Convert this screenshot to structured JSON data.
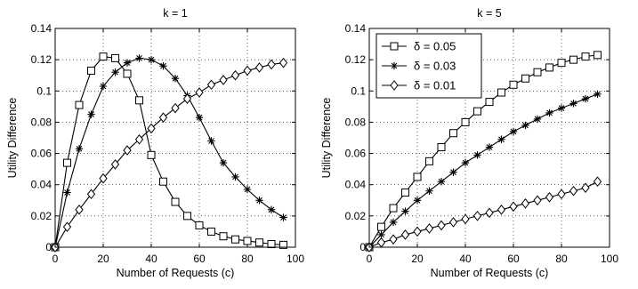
{
  "chart_data": [
    {
      "type": "line",
      "title": "k = 1",
      "xlabel": "Number of Requests (c)",
      "ylabel": "Utility Difference",
      "xlim": [
        0,
        100
      ],
      "ylim": [
        0,
        0.14
      ],
      "xticks": [
        0,
        20,
        40,
        60,
        80,
        100
      ],
      "yticks": [
        0,
        0.02,
        0.04,
        0.06,
        0.08,
        0.1,
        0.12,
        0.14
      ],
      "xtick_labels": [
        "0",
        "20",
        "40",
        "60",
        "80",
        "100"
      ],
      "ytick_labels": [
        "0",
        "0.02",
        "0.04",
        "0.06",
        "0.08",
        "0.1",
        "0.12",
        "0.14"
      ],
      "grid": true,
      "legend": null,
      "series": [
        {
          "name": "δ = 0.05",
          "marker": "square",
          "x": [
            0,
            5,
            10,
            15,
            20,
            25,
            30,
            35,
            40,
            45,
            50,
            55,
            60,
            65,
            70,
            75,
            80,
            85,
            90,
            95
          ],
          "y": [
            0.0,
            0.054,
            0.091,
            0.113,
            0.122,
            0.121,
            0.111,
            0.094,
            0.059,
            0.042,
            0.029,
            0.02,
            0.014,
            0.01,
            0.007,
            0.005,
            0.004,
            0.003,
            0.002,
            0.0015
          ]
        },
        {
          "name": "δ = 0.03",
          "marker": "star",
          "x": [
            0,
            5,
            10,
            15,
            20,
            25,
            30,
            35,
            40,
            45,
            50,
            55,
            60,
            65,
            70,
            75,
            80,
            85,
            90,
            95
          ],
          "y": [
            0.0,
            0.035,
            0.063,
            0.085,
            0.103,
            0.112,
            0.118,
            0.121,
            0.12,
            0.116,
            0.108,
            0.097,
            0.083,
            0.068,
            0.054,
            0.045,
            0.037,
            0.03,
            0.024,
            0.019
          ]
        },
        {
          "name": "δ = 0.01",
          "marker": "diamond",
          "x": [
            0,
            5,
            10,
            15,
            20,
            25,
            30,
            35,
            40,
            45,
            50,
            55,
            60,
            65,
            70,
            75,
            80,
            85,
            90,
            95
          ],
          "y": [
            0.0,
            0.013,
            0.024,
            0.034,
            0.044,
            0.053,
            0.062,
            0.069,
            0.076,
            0.083,
            0.089,
            0.095,
            0.099,
            0.104,
            0.107,
            0.11,
            0.113,
            0.115,
            0.117,
            0.118
          ]
        }
      ]
    },
    {
      "type": "line",
      "title": "k = 5",
      "xlabel": "Number of Requests (c)",
      "ylabel": "Utility Difference",
      "xlim": [
        0,
        100
      ],
      "ylim": [
        0,
        0.14
      ],
      "xticks": [
        0,
        20,
        40,
        60,
        80,
        100
      ],
      "yticks": [
        0,
        0.02,
        0.04,
        0.06,
        0.08,
        0.1,
        0.12,
        0.14
      ],
      "xtick_labels": [
        "0",
        "20",
        "40",
        "60",
        "80",
        "100"
      ],
      "ytick_labels": [
        "0",
        "0.02",
        "0.04",
        "0.06",
        "0.08",
        "0.1",
        "0.12",
        "0.14"
      ],
      "grid": true,
      "legend": "top-left",
      "series": [
        {
          "name": "δ = 0.05",
          "marker": "square",
          "x": [
            0,
            5,
            10,
            15,
            20,
            25,
            30,
            35,
            40,
            45,
            50,
            55,
            60,
            65,
            70,
            75,
            80,
            85,
            90,
            95
          ],
          "y": [
            0.0,
            0.013,
            0.025,
            0.035,
            0.045,
            0.055,
            0.064,
            0.073,
            0.08,
            0.087,
            0.093,
            0.099,
            0.104,
            0.108,
            0.112,
            0.115,
            0.118,
            0.12,
            0.122,
            0.123
          ]
        },
        {
          "name": "δ = 0.03",
          "marker": "star",
          "x": [
            0,
            5,
            10,
            15,
            20,
            25,
            30,
            35,
            40,
            45,
            50,
            55,
            60,
            65,
            70,
            75,
            80,
            85,
            90,
            95
          ],
          "y": [
            0.0,
            0.008,
            0.016,
            0.023,
            0.03,
            0.036,
            0.042,
            0.048,
            0.054,
            0.059,
            0.064,
            0.069,
            0.074,
            0.078,
            0.082,
            0.086,
            0.089,
            0.092,
            0.095,
            0.098
          ]
        },
        {
          "name": "δ = 0.01",
          "marker": "diamond",
          "x": [
            0,
            5,
            10,
            15,
            20,
            25,
            30,
            35,
            40,
            45,
            50,
            55,
            60,
            65,
            70,
            75,
            80,
            85,
            90,
            95
          ],
          "y": [
            0.0,
            0.003,
            0.005,
            0.008,
            0.01,
            0.012,
            0.014,
            0.016,
            0.018,
            0.02,
            0.022,
            0.024,
            0.026,
            0.028,
            0.03,
            0.032,
            0.034,
            0.036,
            0.038,
            0.042
          ]
        }
      ]
    }
  ]
}
